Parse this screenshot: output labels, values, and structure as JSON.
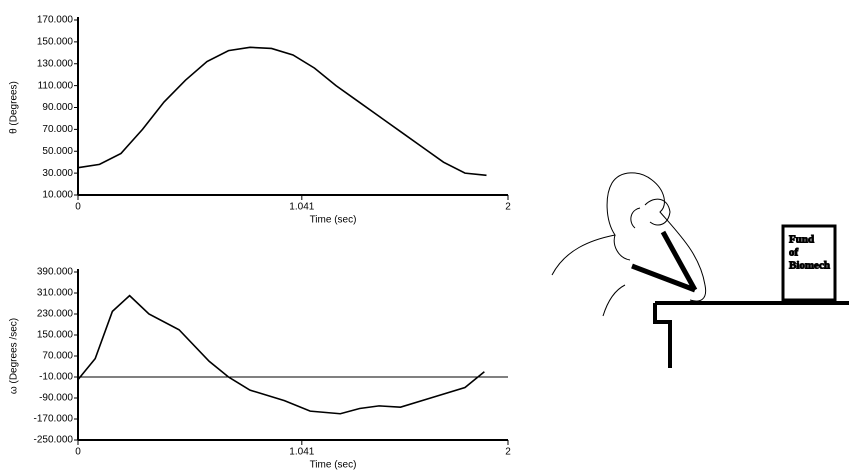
{
  "chart_data": [
    {
      "type": "line",
      "y_label": "θ (Degrees)",
      "x_label": "Time (sec)",
      "xlim": [
        0,
        2
      ],
      "xticks": [
        0,
        1.041,
        2
      ],
      "ylim": [
        10,
        170
      ],
      "yticks": [
        {
          "value": 10,
          "label": "10.000"
        },
        {
          "value": 30,
          "label": "30.000"
        },
        {
          "value": 50,
          "label": "50.000"
        },
        {
          "value": 70,
          "label": "70.000"
        },
        {
          "value": 90,
          "label": "90.000"
        },
        {
          "value": 110,
          "label": "110.000"
        },
        {
          "value": 130,
          "label": "130.000"
        },
        {
          "value": 150,
          "label": "150.000"
        },
        {
          "value": 170,
          "label": "170.000"
        }
      ],
      "series": [
        {
          "color": "#000000",
          "x": [
            0,
            0.1,
            0.2,
            0.3,
            0.4,
            0.5,
            0.6,
            0.7,
            0.8,
            0.9,
            1.0,
            1.1,
            1.2,
            1.3,
            1.4,
            1.5,
            1.6,
            1.7,
            1.8,
            1.9
          ],
          "values": [
            35,
            38,
            48,
            70,
            95,
            115,
            132,
            142,
            145,
            144,
            138,
            126,
            110,
            96,
            82,
            68,
            54,
            40,
            30,
            28
          ]
        }
      ]
    },
    {
      "type": "line",
      "y_label": "ω (Degrees /sec)",
      "x_label": "Time (sec)",
      "xlim": [
        0,
        2
      ],
      "xticks": [
        0,
        1.041,
        2
      ],
      "ylim": [
        -250,
        390
      ],
      "yticks": [
        {
          "value": -250,
          "label": "-250.000"
        },
        {
          "value": -170,
          "label": "-170.000"
        },
        {
          "value": -90,
          "label": "-90.000"
        },
        {
          "value": -10,
          "label": "-10.000"
        },
        {
          "value": 70,
          "label": "70.000"
        },
        {
          "value": 150,
          "label": "150.000"
        },
        {
          "value": 230,
          "label": "230.000"
        },
        {
          "value": 310,
          "label": "310.000"
        },
        {
          "value": 390,
          "label": "390.000"
        }
      ],
      "hline": -10,
      "series": [
        {
          "color": "#000000",
          "x": [
            0,
            0.08,
            0.16,
            0.24,
            0.33,
            0.47,
            0.61,
            0.7,
            0.8,
            0.96,
            1.08,
            1.22,
            1.31,
            1.4,
            1.5,
            1.64,
            1.8,
            1.89
          ],
          "values": [
            -20,
            60,
            240,
            300,
            230,
            170,
            50,
            -10,
            -60,
            -100,
            -140,
            -150,
            -130,
            -120,
            -125,
            -90,
            -50,
            10
          ]
        }
      ]
    }
  ],
  "illustration": {
    "sign_lines": [
      "Fund",
      "of",
      "Biomech"
    ]
  }
}
